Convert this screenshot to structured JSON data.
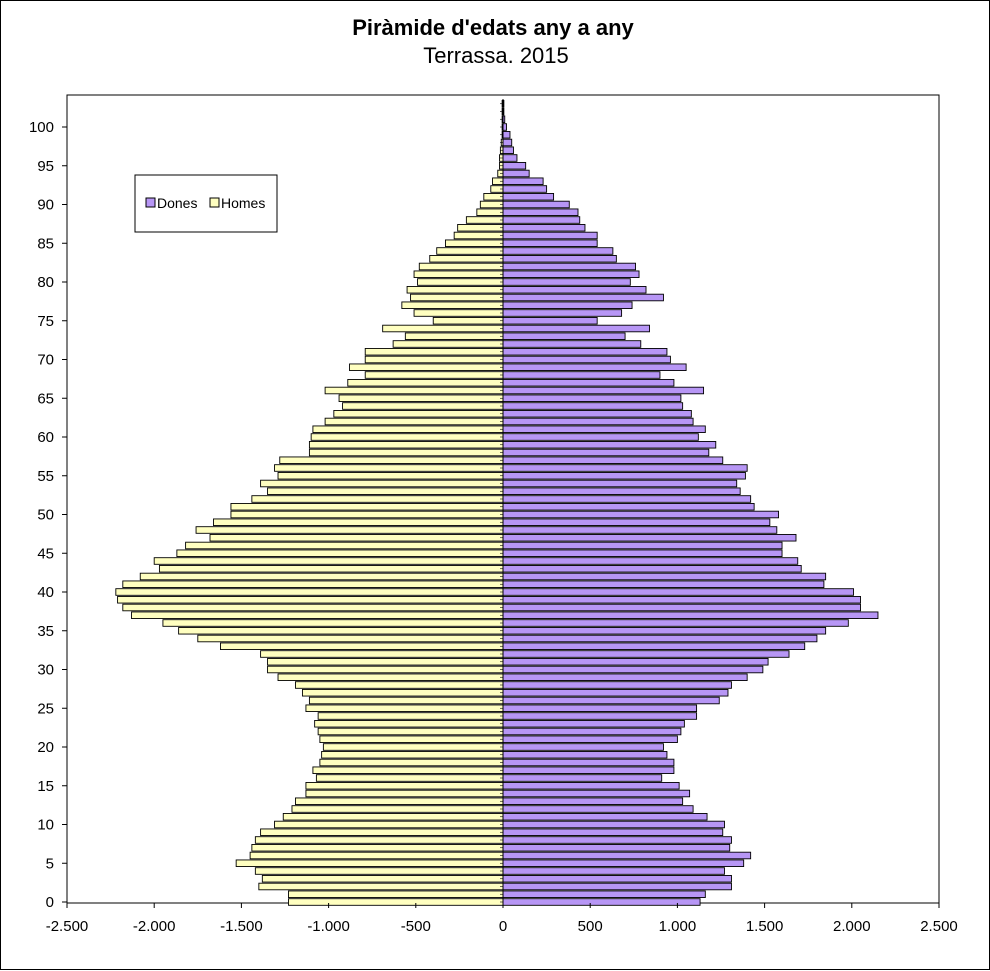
{
  "chart_data": {
    "type": "bar",
    "orientation": "horizontal",
    "title": "Piràmide d'edats any a any",
    "subtitle": "Terrassa. 2015",
    "xlim": [
      -2500,
      2500
    ],
    "x_ticks": [
      -2500,
      -2000,
      -1500,
      -1000,
      -500,
      0,
      500,
      1000,
      1500,
      2000,
      2500
    ],
    "x_tick_labels": [
      "-2.500",
      "-2.000",
      "-1.500",
      "-1.000",
      "-500",
      "0",
      "500",
      "1.000",
      "1.500",
      "2.000",
      "2.500"
    ],
    "ylim": [
      0,
      103
    ],
    "y_ticks": [
      0,
      5,
      10,
      15,
      20,
      25,
      30,
      35,
      40,
      45,
      50,
      55,
      60,
      65,
      70,
      75,
      80,
      85,
      90,
      95,
      100
    ],
    "legend_placement": "top-left",
    "grid": false,
    "ages": [
      0,
      1,
      2,
      3,
      4,
      5,
      6,
      7,
      8,
      9,
      10,
      11,
      12,
      13,
      14,
      15,
      16,
      17,
      18,
      19,
      20,
      21,
      22,
      23,
      24,
      25,
      26,
      27,
      28,
      29,
      30,
      31,
      32,
      33,
      34,
      35,
      36,
      37,
      38,
      39,
      40,
      41,
      42,
      43,
      44,
      45,
      46,
      47,
      48,
      49,
      50,
      51,
      52,
      53,
      54,
      55,
      56,
      57,
      58,
      59,
      60,
      61,
      62,
      63,
      64,
      65,
      66,
      67,
      68,
      69,
      70,
      71,
      72,
      73,
      74,
      75,
      76,
      77,
      78,
      79,
      80,
      81,
      82,
      83,
      84,
      85,
      86,
      87,
      88,
      89,
      90,
      91,
      92,
      93,
      94,
      95,
      96,
      97,
      98,
      99,
      100,
      101,
      102,
      103
    ],
    "series": [
      {
        "name": "Dones",
        "color": "#b796f5",
        "values": [
          1130,
          1160,
          1310,
          1310,
          1270,
          1380,
          1420,
          1300,
          1310,
          1260,
          1270,
          1170,
          1090,
          1030,
          1070,
          1010,
          910,
          980,
          980,
          940,
          920,
          1000,
          1020,
          1040,
          1110,
          1110,
          1240,
          1290,
          1310,
          1400,
          1490,
          1520,
          1640,
          1730,
          1800,
          1850,
          1980,
          2150,
          2050,
          2050,
          2010,
          1840,
          1850,
          1710,
          1690,
          1600,
          1600,
          1680,
          1570,
          1530,
          1580,
          1440,
          1420,
          1360,
          1340,
          1390,
          1400,
          1260,
          1180,
          1220,
          1120,
          1160,
          1090,
          1080,
          1030,
          1020,
          1150,
          980,
          900,
          1050,
          960,
          940,
          790,
          700,
          840,
          540,
          680,
          740,
          920,
          820,
          730,
          780,
          760,
          650,
          630,
          540,
          540,
          470,
          440,
          430,
          380,
          290,
          250,
          230,
          150,
          130,
          80,
          60,
          50,
          40,
          20,
          10,
          5,
          5
        ]
      },
      {
        "name": "Homes",
        "color": "#ffffc0",
        "values": [
          1230,
          1230,
          1400,
          1380,
          1420,
          1530,
          1450,
          1440,
          1420,
          1390,
          1310,
          1260,
          1210,
          1190,
          1130,
          1130,
          1070,
          1090,
          1050,
          1040,
          1030,
          1050,
          1060,
          1080,
          1060,
          1130,
          1110,
          1150,
          1190,
          1290,
          1350,
          1350,
          1390,
          1620,
          1750,
          1860,
          1950,
          2130,
          2180,
          2210,
          2220,
          2180,
          2080,
          1970,
          2000,
          1870,
          1820,
          1680,
          1760,
          1660,
          1560,
          1560,
          1440,
          1350,
          1390,
          1290,
          1310,
          1280,
          1110,
          1110,
          1100,
          1090,
          1020,
          970,
          920,
          940,
          1020,
          890,
          790,
          880,
          790,
          790,
          630,
          560,
          690,
          400,
          510,
          580,
          530,
          550,
          490,
          510,
          480,
          420,
          380,
          330,
          280,
          260,
          210,
          150,
          130,
          110,
          70,
          60,
          30,
          20,
          20,
          15,
          10,
          5,
          5,
          5,
          5,
          5
        ]
      }
    ]
  }
}
